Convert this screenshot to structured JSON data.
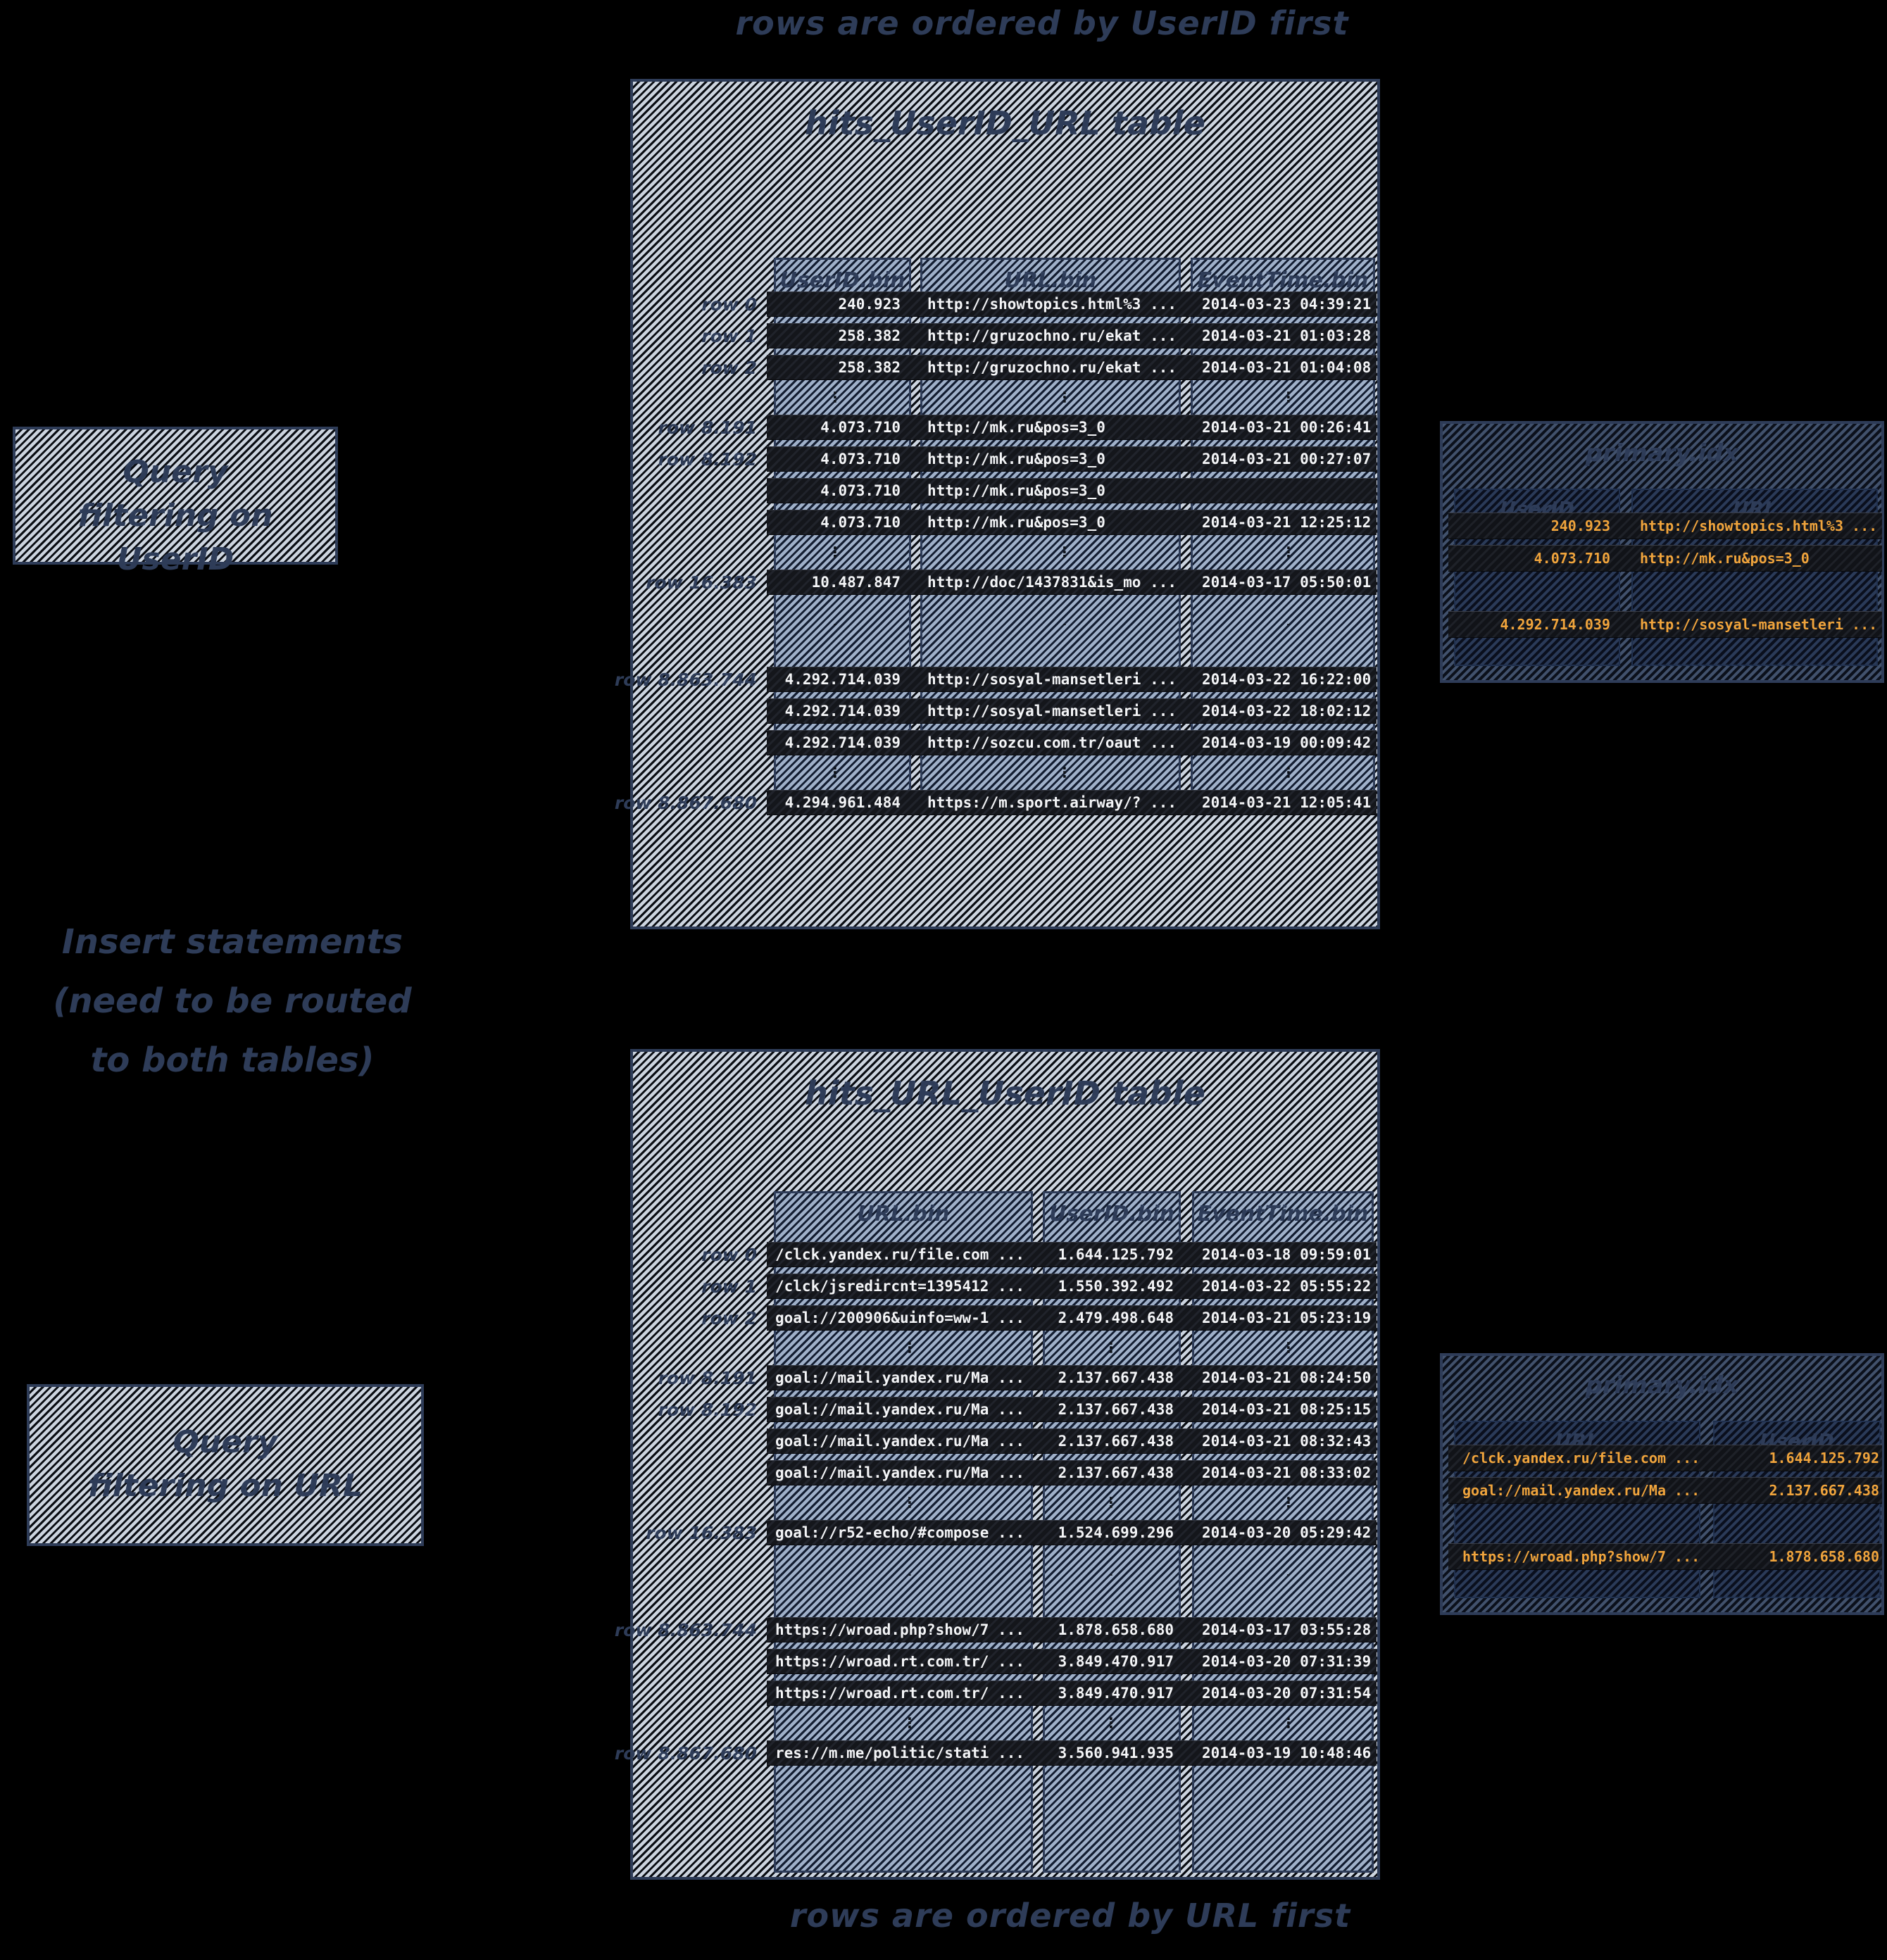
{
  "captions": {
    "top": "rows are ordered by UserID first",
    "bottom": "rows are ordered by URL first"
  },
  "notes": {
    "insert_line1": "Insert statements",
    "insert_line2": "(need to be routed",
    "insert_line3": "to both tables)"
  },
  "query_boxes": {
    "userid": {
      "line1": "Query",
      "line2": "filtering on UserID"
    },
    "url": {
      "line1": "Query",
      "line2": "filtering on URL"
    }
  },
  "tables": {
    "userid_first": {
      "title": "hits_UserID_URL table",
      "columns": [
        "UserID.bin",
        "URL.bin",
        "EventTime.bin"
      ],
      "rows": [
        {
          "type": "data",
          "label": "row 0",
          "c1": "240.923",
          "c2": "http://showtopics.html%3 ...",
          "c3": "2014-03-23 04:39:21"
        },
        {
          "type": "data",
          "label": "row 1",
          "c1": "258.382",
          "c2": "http://gruzochno.ru/ekat ...",
          "c3": "2014-03-21 01:03:28"
        },
        {
          "type": "data",
          "label": "row 2",
          "c1": "258.382",
          "c2": "http://gruzochno.ru/ekat ...",
          "c3": "2014-03-21 01:04:08"
        },
        {
          "type": "gap",
          "label": "",
          "c1": "⋮",
          "c2": "⋮",
          "c3": "⋮"
        },
        {
          "type": "data",
          "label": "row 8.191",
          "c1": "4.073.710",
          "c2": "http://mk.ru&pos=3_0",
          "c3": "2014-03-21 00:26:41"
        },
        {
          "type": "data",
          "label": "row 8.192",
          "c1": "4.073.710",
          "c2": "http://mk.ru&pos=3_0",
          "c3": "2014-03-21 00:27:07"
        },
        {
          "type": "data",
          "label": "",
          "c1": "4.073.710",
          "c2": "http://mk.ru&pos=3_0",
          "c3": ""
        },
        {
          "type": "data",
          "label": "",
          "c1": "4.073.710",
          "c2": "http://mk.ru&pos=3_0",
          "c3": "2014-03-21 12:25:12"
        },
        {
          "type": "gap",
          "label": "",
          "c1": "⋮",
          "c2": "⋮",
          "c3": "⋮"
        },
        {
          "type": "data",
          "label": "row 16.383",
          "c1": "10.487.847",
          "c2": "http://doc/1437831&is_mo ...",
          "c3": "2014-03-17 05:50:01"
        },
        {
          "type": "gapL",
          "label": "",
          "c1": "⋮",
          "c2": "⋮",
          "c3": "⋮"
        },
        {
          "type": "data",
          "label": "row 8.863.744",
          "c1": "4.292.714.039",
          "c2": "http://sosyal-mansetleri ...",
          "c3": "2014-03-22 16:22:00"
        },
        {
          "type": "data",
          "label": "",
          "c1": "4.292.714.039",
          "c2": "http://sosyal-mansetleri ...",
          "c3": "2014-03-22 18:02:12"
        },
        {
          "type": "data",
          "label": "",
          "c1": "4.292.714.039",
          "c2": "http://sozcu.com.tr/oaut ...",
          "c3": "2014-03-19 00:09:42"
        },
        {
          "type": "gap",
          "label": "",
          "c1": "⋮",
          "c2": "⋮",
          "c3": "⋮"
        },
        {
          "type": "data",
          "label": "row 8.867.680",
          "c1": "4.294.961.484",
          "c2": "https://m.sport.airway/? ...",
          "c3": "2014-03-21 12:05:41"
        }
      ]
    },
    "url_first": {
      "title": "hits_URL_UserID table",
      "columns": [
        "URL.bin",
        "UserID.bin",
        "EventTime.bin"
      ],
      "rows": [
        {
          "type": "data",
          "label": "row 0",
          "c1": "/clck.yandex.ru/file.com ...",
          "c2": "1.644.125.792",
          "c3": "2014-03-18 09:59:01"
        },
        {
          "type": "data",
          "label": "row 1",
          "c1": "/clck/jsredircnt=1395412 ...",
          "c2": "1.550.392.492",
          "c3": "2014-03-22 05:55:22"
        },
        {
          "type": "data",
          "label": "row 2",
          "c1": "goal://200906&uinfo=ww-1 ...",
          "c2": "2.479.498.648",
          "c3": "2014-03-21 05:23:19"
        },
        {
          "type": "gap",
          "label": "",
          "c1": "⋮",
          "c2": "⋮",
          "c3": "⋮"
        },
        {
          "type": "data",
          "label": "row 8.191",
          "c1": "goal://mail.yandex.ru/Ma ...",
          "c2": "2.137.667.438",
          "c3": "2014-03-21 08:24:50"
        },
        {
          "type": "data",
          "label": "row 8.192",
          "c1": "goal://mail.yandex.ru/Ma ...",
          "c2": "2.137.667.438",
          "c3": "2014-03-21 08:25:15"
        },
        {
          "type": "data",
          "label": "",
          "c1": "goal://mail.yandex.ru/Ma ...",
          "c2": "2.137.667.438",
          "c3": "2014-03-21 08:32:43"
        },
        {
          "type": "data",
          "label": "",
          "c1": "goal://mail.yandex.ru/Ma ...",
          "c2": "2.137.667.438",
          "c3": "2014-03-21 08:33:02"
        },
        {
          "type": "gap",
          "label": "",
          "c1": "⋮",
          "c2": "⋮",
          "c3": "⋮"
        },
        {
          "type": "data",
          "label": "row 16.383",
          "c1": "goal://r52-echo/#compose ...",
          "c2": "1.524.699.296",
          "c3": "2014-03-20 05:29:42"
        },
        {
          "type": "gapL",
          "label": "",
          "c1": "⋮",
          "c2": "⋮",
          "c3": "⋮"
        },
        {
          "type": "data",
          "label": "row 8.863.744",
          "c1": "https://wroad.php?show/7 ...",
          "c2": "1.878.658.680",
          "c3": "2014-03-17 03:55:28"
        },
        {
          "type": "data",
          "label": "",
          "c1": "https://wroad.rt.com.tr/ ...",
          "c2": "3.849.470.917",
          "c3": "2014-03-20 07:31:39"
        },
        {
          "type": "data",
          "label": "",
          "c1": "https://wroad.rt.com.tr/ ...",
          "c2": "3.849.470.917",
          "c3": "2014-03-20 07:31:54"
        },
        {
          "type": "gap",
          "label": "",
          "c1": "⋮",
          "c2": "⋮",
          "c3": "⋮"
        },
        {
          "type": "data",
          "label": "row 8.867.680",
          "c1": "res://m.me/politic/stati ...",
          "c2": "3.560.941.935",
          "c3": "2014-03-19 10:48:46"
        }
      ]
    }
  },
  "indexes": {
    "userid_first": {
      "title": "primary.idx",
      "columns": [
        "UserID",
        "URL"
      ],
      "rows": [
        {
          "type": "data",
          "c1": "240.923",
          "c2": "http://showtopics.html%3 ..."
        },
        {
          "type": "data",
          "c1": "4.073.710",
          "c2": "http://mk.ru&pos=3_0"
        },
        {
          "type": "gap",
          "c1": "",
          "c2": ""
        },
        {
          "type": "data",
          "c1": "4.292.714.039",
          "c2": "http://sosyal-mansetleri ..."
        }
      ]
    },
    "url_first": {
      "title": "primary.idx",
      "columns": [
        "URL",
        "UserID"
      ],
      "rows": [
        {
          "type": "data",
          "c1": "/clck.yandex.ru/file.com ...",
          "c2": "1.644.125.792"
        },
        {
          "type": "data",
          "c1": "goal://mail.yandex.ru/Ma ...",
          "c2": "2.137.667.438"
        },
        {
          "type": "gap",
          "c1": "",
          "c2": ""
        },
        {
          "type": "data",
          "c1": "https://wroad.php?show/7 ...",
          "c2": "1.878.658.680"
        }
      ]
    }
  },
  "colors": {
    "background": "#000000",
    "ink": "#2e3c58",
    "row_text": "#f4f5f7",
    "index_row_text": "#f0a43c"
  }
}
